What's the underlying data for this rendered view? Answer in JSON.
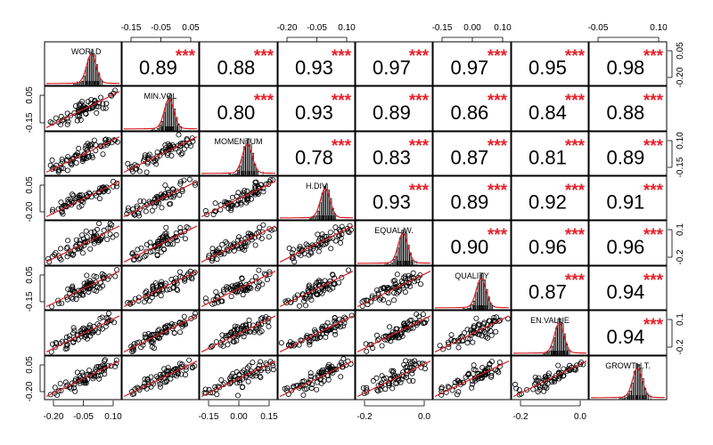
{
  "chart_data": {
    "type": "scatter",
    "subtype": "pairs-correlation-matrix",
    "variables": [
      "WORLD",
      "MIN.VOL",
      "MOMENTUM",
      "H.DIV",
      "EQUAL.W.",
      "QUALITY",
      "EN.VALUE",
      "GROWTH.T."
    ],
    "diagonal_labels": [
      "WORLD",
      "MIN.VOL",
      "MOMENTUM",
      "H.DIV",
      "EQUAL.W.",
      "QUALITY",
      "EN.VALUE",
      "GROWTH.T."
    ],
    "significance": "***",
    "correlations": [
      {
        "row": 0,
        "col": 1,
        "value": "0.89"
      },
      {
        "row": 0,
        "col": 2,
        "value": "0.88"
      },
      {
        "row": 0,
        "col": 3,
        "value": "0.93"
      },
      {
        "row": 0,
        "col": 4,
        "value": "0.97"
      },
      {
        "row": 0,
        "col": 5,
        "value": "0.97"
      },
      {
        "row": 0,
        "col": 6,
        "value": "0.95"
      },
      {
        "row": 0,
        "col": 7,
        "value": "0.98"
      },
      {
        "row": 1,
        "col": 2,
        "value": "0.80"
      },
      {
        "row": 1,
        "col": 3,
        "value": "0.93"
      },
      {
        "row": 1,
        "col": 4,
        "value": "0.89"
      },
      {
        "row": 1,
        "col": 5,
        "value": "0.86"
      },
      {
        "row": 1,
        "col": 6,
        "value": "0.84"
      },
      {
        "row": 1,
        "col": 7,
        "value": "0.88"
      },
      {
        "row": 2,
        "col": 3,
        "value": "0.78"
      },
      {
        "row": 2,
        "col": 4,
        "value": "0.83"
      },
      {
        "row": 2,
        "col": 5,
        "value": "0.87"
      },
      {
        "row": 2,
        "col": 6,
        "value": "0.81"
      },
      {
        "row": 2,
        "col": 7,
        "value": "0.89"
      },
      {
        "row": 3,
        "col": 4,
        "value": "0.93"
      },
      {
        "row": 3,
        "col": 5,
        "value": "0.89"
      },
      {
        "row": 3,
        "col": 6,
        "value": "0.92"
      },
      {
        "row": 3,
        "col": 7,
        "value": "0.91"
      },
      {
        "row": 4,
        "col": 5,
        "value": "0.90"
      },
      {
        "row": 4,
        "col": 6,
        "value": "0.96"
      },
      {
        "row": 4,
        "col": 7,
        "value": "0.96"
      },
      {
        "row": 5,
        "col": 6,
        "value": "0.87"
      },
      {
        "row": 5,
        "col": 7,
        "value": "0.94"
      },
      {
        "row": 6,
        "col": 7,
        "value": "0.94"
      }
    ],
    "axes": {
      "top": [
        {
          "col": 1,
          "ticks": [
            "-0.15",
            "-0.05",
            "0.05"
          ]
        },
        {
          "col": 3,
          "ticks": [
            "-0.20",
            "-0.05",
            "0.10"
          ]
        },
        {
          "col": 5,
          "ticks": [
            "-0.15",
            "0.00",
            "0.10"
          ]
        },
        {
          "col": 7,
          "ticks": [
            "-0.05",
            "0.10"
          ]
        }
      ],
      "bottom": [
        {
          "col": 0,
          "ticks": [
            "-0.20",
            "-0.05",
            "0.10"
          ]
        },
        {
          "col": 2,
          "ticks": [
            "-0.15",
            "0.00",
            "0.15"
          ]
        },
        {
          "col": 4,
          "ticks": [
            "-0.2",
            "0.0"
          ]
        },
        {
          "col": 6,
          "ticks": [
            "-0.2",
            "0.0"
          ]
        }
      ],
      "left": [
        {
          "row": 1,
          "ticks": [
            "0.05",
            "-0.15"
          ]
        },
        {
          "row": 3,
          "ticks": [
            "0.05",
            "-0.20"
          ]
        },
        {
          "row": 5,
          "ticks": [
            "0.05",
            "-0.15"
          ]
        },
        {
          "row": 7,
          "ticks": [
            "0.05",
            "-0.20"
          ]
        }
      ],
      "right": [
        {
          "row": 0,
          "ticks": [
            "0.05",
            "-0.20"
          ]
        },
        {
          "row": 2,
          "ticks": [
            "0.10",
            "-0.15"
          ]
        },
        {
          "row": 4,
          "ticks": [
            "0.1",
            "-0.2"
          ]
        },
        {
          "row": 6,
          "ticks": [
            "0.1",
            "-0.2"
          ]
        }
      ]
    },
    "colors": {
      "stars": "#e8202a",
      "density_line": "#d62027",
      "fit_line": "#d62027",
      "bar_fill": "#bfbfbf",
      "frame": "#000000"
    }
  }
}
